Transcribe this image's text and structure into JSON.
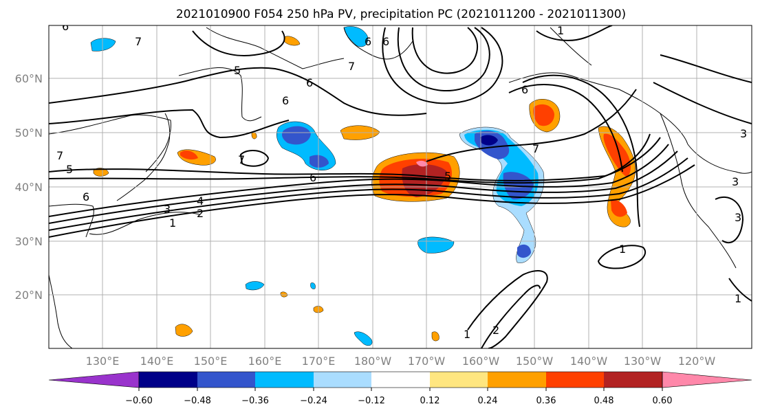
{
  "title": "2021010900 F054 250 hPa PV, precipitation PC (2021011200 - 2021011300)",
  "map": {
    "lat_labels": [
      "60°N",
      "50°N",
      "40°N",
      "30°N",
      "20°N"
    ],
    "lon_labels": [
      "130°E",
      "140°E",
      "150°E",
      "160°E",
      "170°E",
      "180°W",
      "170°W",
      "160°W",
      "150°W",
      "140°W",
      "130°W",
      "120°W"
    ],
    "grid": true,
    "contour_labels": [
      "6",
      "7",
      "5",
      "6",
      "6",
      "7",
      "6",
      "6",
      "6",
      "7",
      "1",
      "7",
      "6",
      "5",
      "4",
      "3",
      "2",
      "1",
      "5",
      "7",
      "6",
      "1",
      "1",
      "2",
      "1",
      "3",
      "3",
      "3"
    ]
  },
  "colorbar": {
    "ticks": [
      "−0.60",
      "−0.48",
      "−0.36",
      "−0.24",
      "−0.12",
      "0.12",
      "0.24",
      "0.36",
      "0.48",
      "0.60"
    ],
    "colors": [
      "#9933cc",
      "#000088",
      "#3355cc",
      "#00bbff",
      "#aaddff",
      "#ffffff",
      "#ffe680",
      "#ffa000",
      "#ff4000",
      "#b22222",
      "#ff88aa"
    ]
  },
  "colors": {
    "shade_purple": "#9933cc",
    "shade_navy": "#000088",
    "shade_blue": "#3355cc",
    "shade_cyan": "#00bbff",
    "shade_lightblue": "#aaddff",
    "shade_yellow": "#ffe680",
    "shade_orange": "#ffa000",
    "shade_redorange": "#ff4000",
    "shade_darkred": "#b22222",
    "shade_pink": "#ff88aa"
  }
}
